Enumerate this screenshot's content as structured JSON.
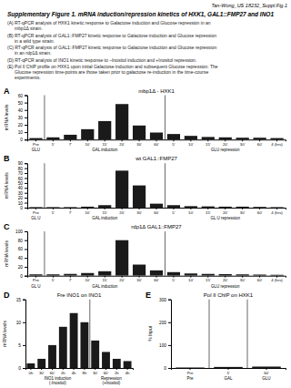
{
  "title": "Supplementary Figure 1.  mRNA induction/repression kinetics of HXK1, GAL1::FMP27 and INO1",
  "subtitle": "Tan-Wong_US 18232_Suppl.Fig.1",
  "annotations": [
    "(A) RT-qPCR analysis of HXK1 kinetic response to Galactose induction and Glucose repression in an\n       mbp1Δ strain.",
    "(B) RT-qPCR analysis of GAL1::FMP27 kinetic response to Galactose induction and Glucose repression\n       in a wild type strain.",
    "(C) RT-qPCR analysis of GAL1::FMP27 kinetic response to Galactose induction and Glucose repression\n       in an rdp1Δ strain.",
    "(D) RT-qPCR analysis of INO1 kinetic response to –Inositol induction and +Inositol repression.",
    "(E) Pol II ChIP profile on HXK1 upon initial Galactose induction and subsequent Glucose repression. The\n       Glucose repression time-points are those taken prior to galactose re-induction in the time-course\n       experiments."
  ],
  "chart_data": [
    {
      "type": "bar",
      "title": "mbp1Δ - HXK1",
      "annotations": [
        "A"
      ],
      "ylabel": "mRNA levels",
      "color": "#1a1a1a",
      "ylim": [
        0,
        60
      ],
      "yticks": [
        0,
        10,
        20,
        30,
        40,
        50,
        60
      ],
      "groups": [
        {
          "label": "GLU",
          "categories": [
            "Pre"
          ],
          "values": [
            2.0
          ]
        },
        {
          "label": "GAL induction",
          "categories": [
            "5'",
            "7'",
            "10'",
            "15'",
            "20'",
            "30'",
            "60'"
          ],
          "values": [
            3.0,
            6.5,
            14.0,
            25.0,
            48.0,
            19.0,
            9.5
          ]
        },
        {
          "label": "GLU repression",
          "categories": [
            "5'",
            "10'",
            "15'",
            "20'",
            "30'",
            "60'",
            "4 (hrs)"
          ],
          "values": [
            7.5,
            5.0,
            3.5,
            3.0,
            2.5,
            2.5,
            2.0
          ]
        }
      ]
    },
    {
      "type": "bar",
      "title": "wt GAL1::FMP27",
      "annotations": [
        "B"
      ],
      "ylabel": "mRNA levels",
      "color": "#1a1a1a",
      "ylim": [
        0,
        90
      ],
      "yticks": [
        0,
        10,
        20,
        30,
        40,
        50,
        60,
        70,
        80,
        90
      ],
      "groups": [
        {
          "label": "GL U",
          "categories": [
            "Pre"
          ],
          "values": [
            1.0
          ]
        },
        {
          "label": "GAL induction",
          "categories": [
            "5'",
            "7'",
            "10'",
            "15'",
            "20'",
            "30'",
            "60'"
          ],
          "values": [
            1.0,
            1.0,
            2.0,
            5.0,
            75.0,
            45.0,
            8.0
          ]
        },
        {
          "label": "GL U repression",
          "categories": [
            "5'",
            "10'",
            "15'",
            "20'",
            "30'",
            "60'",
            "4 (hrs)"
          ],
          "values": [
            5.0,
            3.0,
            2.5,
            2.0,
            2.0,
            1.5,
            1.0
          ]
        }
      ]
    },
    {
      "type": "bar",
      "title": "rdp1Δ GAL1::FMP27",
      "annotations": [
        "C"
      ],
      "ylabel": "mRNA levels",
      "color": "#1a1a1a",
      "ylim": [
        0,
        100
      ],
      "yticks": [
        0,
        20,
        40,
        60,
        80,
        100
      ],
      "groups": [
        {
          "label": "GL U",
          "categories": [
            "Pre"
          ],
          "values": [
            3.0
          ]
        },
        {
          "label": "GAL induction",
          "categories": [
            "5'",
            "7'",
            "10'",
            "15'",
            "20'",
            "30'",
            "60'"
          ],
          "values": [
            3.0,
            4.0,
            6.0,
            10.0,
            80.0,
            25.0,
            12.0
          ]
        },
        {
          "label": "GLU repression",
          "categories": [
            "5'",
            "10'",
            "15'",
            "20'",
            "30'",
            "60'",
            "4 (hrs)"
          ],
          "values": [
            8.0,
            5.0,
            4.0,
            3.5,
            3.0,
            2.5,
            2.0
          ]
        }
      ]
    },
    {
      "type": "bar",
      "title": "Fre INO1 on INO1",
      "annotations": [
        "D"
      ],
      "ylabel": "mRNA levels",
      "color": "#1a1a1a",
      "ylim": [
        0,
        15
      ],
      "yticks": [
        0,
        5,
        10,
        15
      ],
      "groups": [
        {
          "label": "INO1 induction\n(-Inositol)",
          "categories": [
            "0h",
            "30'",
            "60'",
            "2h",
            "4h",
            "8h"
          ],
          "values": [
            1.0,
            2.0,
            5.0,
            9.0,
            12.0,
            10.0
          ]
        },
        {
          "label": "Repression\n(+Inositol)",
          "categories": [
            "30'",
            "60'",
            "2h",
            "4h"
          ],
          "values": [
            6.0,
            3.5,
            2.0,
            1.5
          ]
        }
      ]
    },
    {
      "type": "bar",
      "title": "Pol II ChIP on HXK1",
      "annotations": [
        "E"
      ],
      "ylabel": "% Input",
      "color": "#1a1a1a",
      "ylim": [
        0,
        300
      ],
      "yticks": [
        0,
        100,
        200,
        300
      ],
      "groups": [
        {
          "label": "Pre",
          "categories": [
            "Pre"
          ],
          "values": [
            2.0
          ]
        },
        {
          "label": "GAL",
          "categories": [
            "5'"
          ],
          "values": [
            4.5
          ]
        },
        {
          "label": "GLU",
          "categories": [
            "60'"
          ],
          "values": [
            6.0
          ]
        }
      ]
    }
  ]
}
